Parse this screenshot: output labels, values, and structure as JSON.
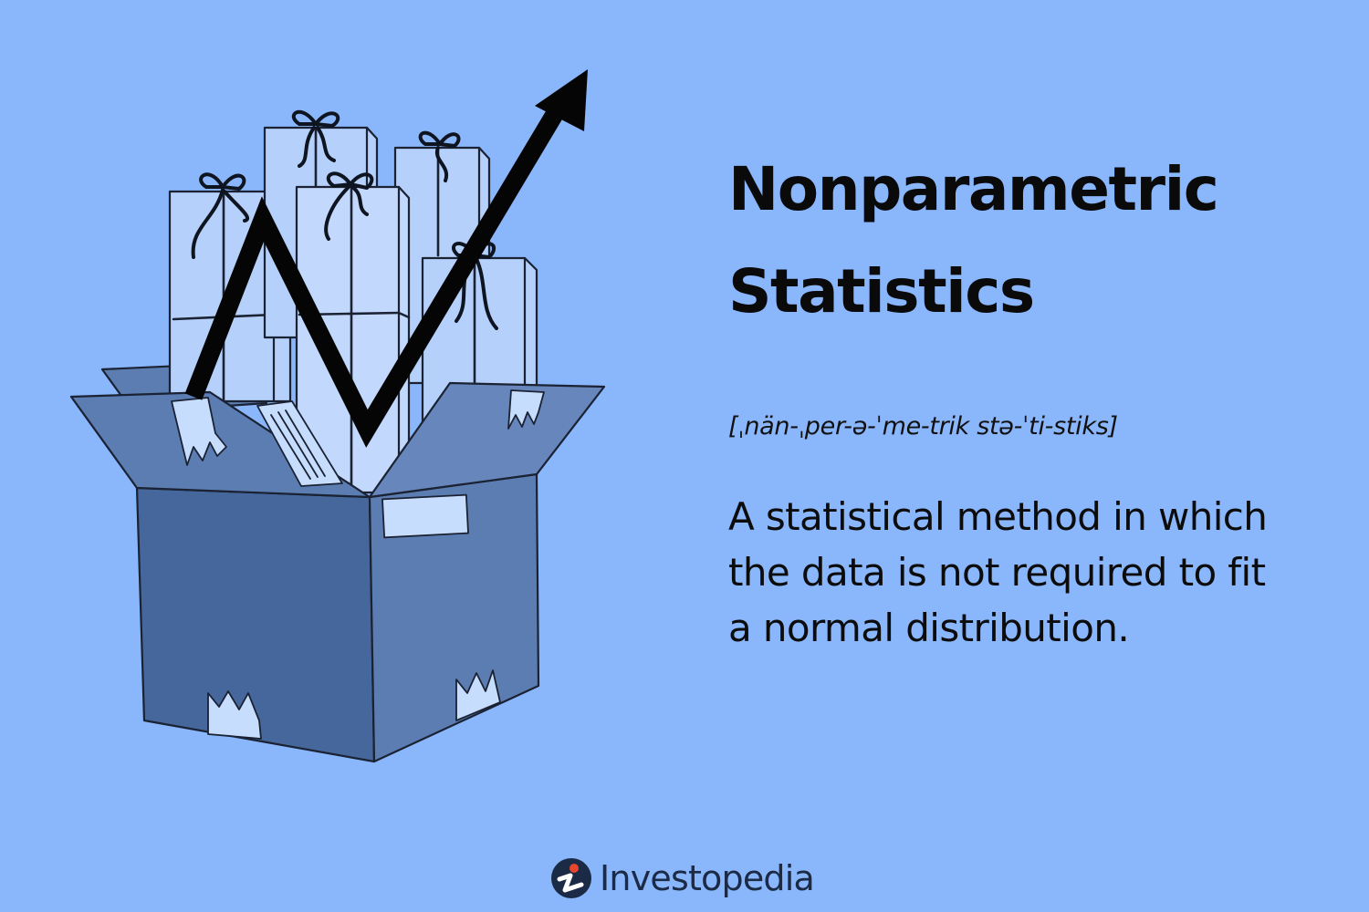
{
  "term": {
    "title_line1": "Nonparametric",
    "title_line2": "Statistics",
    "pronunciation": "[ˌnän-ˌper-ə-ˈme-trik stə-ˈti-stiks]",
    "definition": "A statistical method in which the data is not required to fit a normal distribution."
  },
  "brand": {
    "name": "Investopedia"
  },
  "illustration": {
    "subject": "open box of gift packages",
    "icon": "trend-arrow-icon"
  },
  "colors": {
    "background": "#8ab6fb",
    "box_dark": "#47689c",
    "box_mid": "#5b7db2",
    "gift_light": "#b4d0fb",
    "ink": "#0c0c0c",
    "brand_red": "#e8462c",
    "brand_navy": "#1b2a45"
  }
}
